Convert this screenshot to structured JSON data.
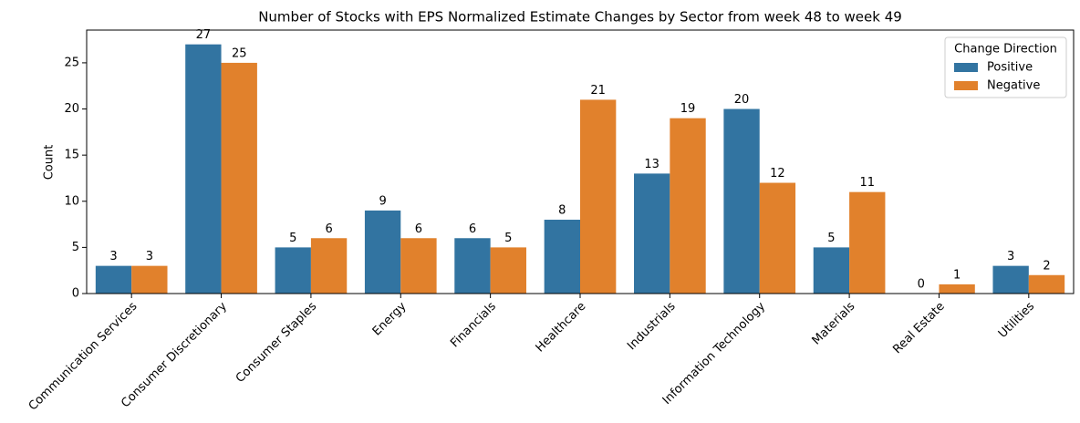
{
  "chart_data": {
    "type": "bar",
    "title": "Number of Stocks with EPS Normalized Estimate Changes by Sector from week 48 to week 49",
    "y_label": "Count",
    "categories": [
      "Communication Services",
      "Consumer Discretionary",
      "Consumer Staples",
      "Energy",
      "Financials",
      "Healthcare",
      "Industrials",
      "Information Technology",
      "Materials",
      "Real Estate",
      "Utilities"
    ],
    "series": [
      {
        "name": "Positive",
        "color": "#3274a1",
        "values": [
          3,
          27,
          5,
          9,
          6,
          8,
          13,
          20,
          5,
          0,
          3
        ]
      },
      {
        "name": "Negative",
        "color": "#e1812c",
        "values": [
          3,
          25,
          6,
          6,
          5,
          21,
          19,
          12,
          11,
          1,
          2
        ]
      }
    ],
    "legend_title": "Change Direction",
    "legend": "upper right",
    "ylim": [
      0,
      28.35
    ],
    "yticks": [
      0,
      5,
      10,
      15,
      20,
      25
    ]
  }
}
